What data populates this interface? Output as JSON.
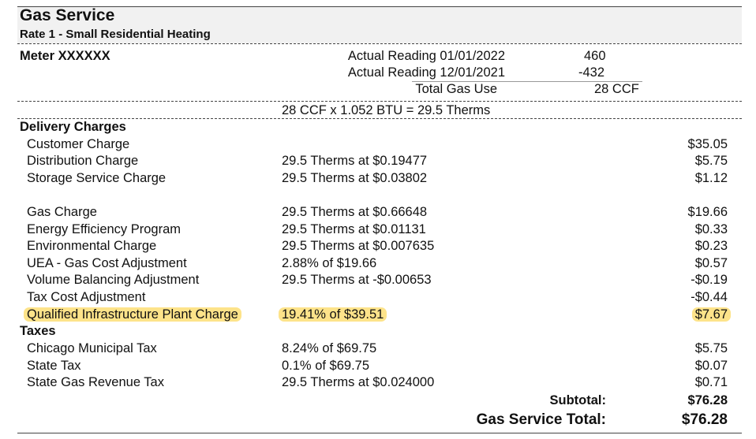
{
  "title": "Gas Service",
  "rate": "Rate 1 - Small Residential Heating",
  "meter": {
    "label": "Meter XXXXXX",
    "readings": [
      {
        "label": "Actual Reading 01/01/2022",
        "value": "460"
      },
      {
        "label": "Actual Reading 12/01/2021",
        "value": "-432"
      }
    ],
    "total_label": "Total Gas Use",
    "total_value": "28 CCF",
    "conversion": "28 CCF x 1.052 BTU = 29.5 Therms"
  },
  "delivery": {
    "heading": "Delivery Charges",
    "rows": [
      {
        "name": "Customer Charge",
        "detail": "",
        "amount": "$35.05"
      },
      {
        "name": "Distribution Charge",
        "detail": "29.5 Therms at $0.19477",
        "amount": "$5.75"
      },
      {
        "name": "Storage Service Charge",
        "detail": "29.5 Therms at $0.03802",
        "amount": "$1.12"
      }
    ]
  },
  "supply": {
    "rows": [
      {
        "name": "Gas Charge",
        "detail": "29.5 Therms at $0.66648",
        "amount": "$19.66"
      },
      {
        "name": "Energy Efficiency Program",
        "detail": "29.5 Therms at $0.01131",
        "amount": "$0.33"
      },
      {
        "name": "Environmental Charge",
        "detail": "29.5 Therms at $0.007635",
        "amount": "$0.23"
      },
      {
        "name": "UEA - Gas Cost Adjustment",
        "detail": "2.88% of $19.66",
        "amount": "$0.57"
      },
      {
        "name": "Volume Balancing Adjustment",
        "detail": "29.5 Therms at -$0.00653",
        "amount": "-$0.19"
      },
      {
        "name": "Tax Cost Adjustment",
        "detail": "",
        "amount": "-$0.44"
      },
      {
        "name": "Qualified Infrastructure Plant Charge",
        "detail": "19.41% of $39.51",
        "amount": "$7.67"
      }
    ]
  },
  "taxes": {
    "heading": "Taxes",
    "rows": [
      {
        "name": "Chicago Municipal Tax",
        "detail": "8.24% of $69.75",
        "amount": "$5.75"
      },
      {
        "name": "State Tax",
        "detail": "0.1% of $69.75",
        "amount": "$0.07"
      },
      {
        "name": "State Gas Revenue Tax",
        "detail": "29.5 Therms at $0.024000",
        "amount": "$0.71"
      }
    ]
  },
  "subtotal": {
    "label": "Subtotal:",
    "value": "$76.28"
  },
  "grand_total": {
    "label": "Gas Service Total:",
    "value": "$76.28"
  },
  "colors": {
    "highlight": "#fde38a",
    "title_band": "#f1f1f1"
  }
}
